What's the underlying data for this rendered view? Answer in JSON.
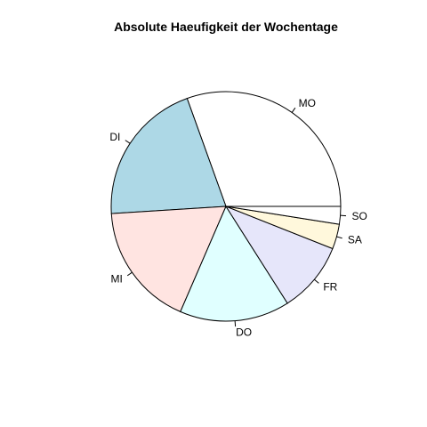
{
  "chart_data": {
    "type": "pie",
    "title": "Absolute Haeufigkeit der Wochentage",
    "categories": [
      "MO",
      "DI",
      "MI",
      "DO",
      "FR",
      "SA",
      "SO"
    ],
    "values": [
      30.5,
      20.5,
      17.5,
      15.5,
      10.0,
      3.5,
      2.5
    ],
    "colors": [
      "#ffffff",
      "#add8e6",
      "#ffe4e1",
      "#e0ffff",
      "#e6e6fa",
      "#fff8dc",
      "#ffffff"
    ],
    "start": "3 o'clock",
    "direction": "counterclockwise",
    "legend": "none"
  }
}
